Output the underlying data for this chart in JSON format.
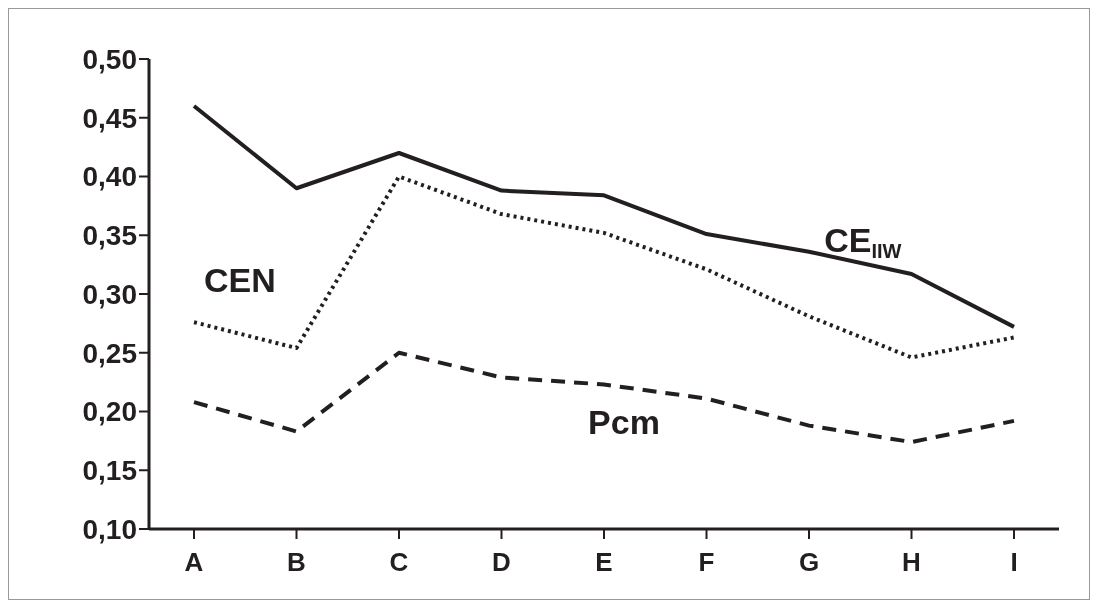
{
  "chart_data": {
    "type": "line",
    "categories": [
      "A",
      "B",
      "C",
      "D",
      "E",
      "F",
      "G",
      "H",
      "I"
    ],
    "series": [
      {
        "name": "CE$_{IIW}$",
        "color": "#231f20",
        "line_style": "solid",
        "values": [
          0.46,
          0.39,
          0.42,
          0.388,
          0.384,
          0.351,
          0.336,
          0.317,
          0.272
        ]
      },
      {
        "name": "CEN",
        "color": "#231f20",
        "line_style": "dotted",
        "values": [
          0.276,
          0.254,
          0.4,
          0.368,
          0.352,
          0.321,
          0.281,
          0.246,
          0.263
        ]
      },
      {
        "name": "Pcm",
        "color": "#231f20",
        "line_style": "dashed",
        "values": [
          0.208,
          0.183,
          0.25,
          0.229,
          0.223,
          0.211,
          0.188,
          0.174,
          0.192
        ]
      }
    ],
    "ylim": [
      0.1,
      0.5
    ],
    "yticks": [
      {
        "value": 0.1,
        "label": "0,10"
      },
      {
        "value": 0.15,
        "label": "0,15"
      },
      {
        "value": 0.2,
        "label": "0,20"
      },
      {
        "value": 0.25,
        "label": "0,25"
      },
      {
        "value": 0.3,
        "label": "0,30"
      },
      {
        "value": 0.35,
        "label": "0,35"
      },
      {
        "value": 0.4,
        "label": "0,40"
      },
      {
        "value": 0.45,
        "label": "0,45"
      },
      {
        "value": 0.5,
        "label": "0,50"
      }
    ],
    "grid": false,
    "legend": false,
    "marker": "none"
  }
}
